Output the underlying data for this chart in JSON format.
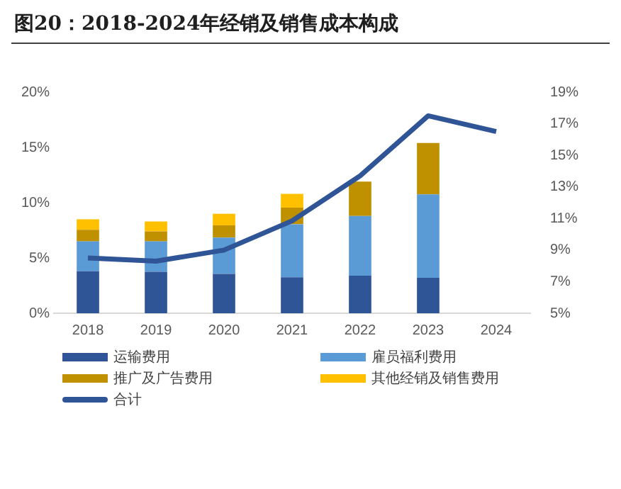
{
  "chart_data": {
    "type": "bar",
    "title": "图20：2018-2024年经销及销售成本构成",
    "categories": [
      "2018",
      "2019",
      "2020",
      "2021",
      "2022",
      "2023",
      "2024"
    ],
    "stacked": true,
    "series": [
      {
        "name": "运输费用",
        "color": "#2f5597",
        "values": [
          3.8,
          3.75,
          3.55,
          3.25,
          3.4,
          3.2,
          null
        ]
      },
      {
        "name": "雇员福利费用",
        "color": "#5b9bd5",
        "values": [
          2.7,
          2.75,
          3.3,
          4.8,
          5.4,
          7.55,
          null
        ]
      },
      {
        "name": "推广及广告费用",
        "color": "#bf9000",
        "values": [
          1.05,
          0.9,
          1.1,
          1.5,
          3.1,
          4.65,
          null
        ]
      },
      {
        "name": "其他经销及销售费用",
        "color": "#ffc000",
        "values": [
          0.95,
          0.9,
          1.05,
          1.25,
          null,
          null,
          null
        ]
      },
      {
        "name": "合计",
        "type": "line",
        "axis": "y2",
        "color": "#2f5597",
        "values": [
          8.5,
          8.3,
          9.0,
          10.85,
          13.7,
          17.5,
          16.5
        ]
      }
    ],
    "ylim": [
      0,
      20
    ],
    "yticks": [
      {
        "value": 0,
        "label": "0%"
      },
      {
        "value": 5,
        "label": "5%"
      },
      {
        "value": 10,
        "label": "10%"
      },
      {
        "value": 15,
        "label": "15%"
      },
      {
        "value": 20,
        "label": "20%"
      }
    ],
    "y2lim": [
      5,
      19
    ],
    "y2ticks": [
      {
        "value": 5,
        "label": "5%"
      },
      {
        "value": 7,
        "label": "7%"
      },
      {
        "value": 9,
        "label": "9%"
      },
      {
        "value": 11,
        "label": "11%"
      },
      {
        "value": 13,
        "label": "13%"
      },
      {
        "value": 15,
        "label": "15%"
      },
      {
        "value": 17,
        "label": "17%"
      },
      {
        "value": 19,
        "label": "19%"
      }
    ],
    "grid": false,
    "legend": "bottom",
    "marker": "none"
  }
}
